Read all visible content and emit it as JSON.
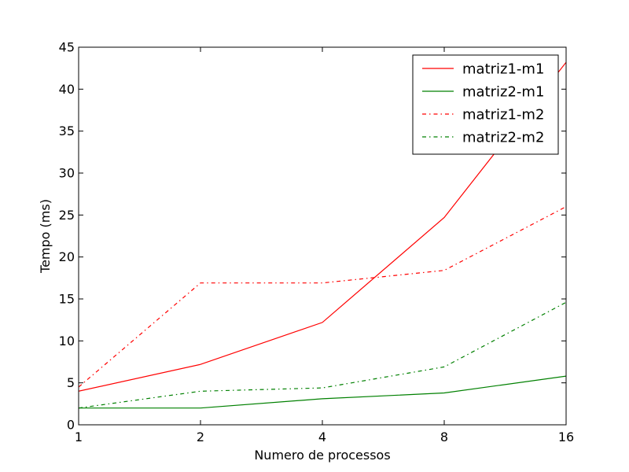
{
  "chart_data": {
    "type": "line",
    "xlabel": "Numero de processos",
    "ylabel": "Tempo (ms)",
    "x": [
      1,
      2,
      4,
      8,
      16
    ],
    "x_ticks": [
      "1",
      "2",
      "4",
      "8",
      "16"
    ],
    "x_scale": "log2",
    "ylim": [
      0,
      45
    ],
    "y_ticks": [
      "0",
      "5",
      "10",
      "15",
      "20",
      "25",
      "30",
      "35",
      "40",
      "45"
    ],
    "grid": false,
    "legend_position": "top-right",
    "series": [
      {
        "name": "matriz1-m1",
        "color": "#ff0000",
        "style": "solid",
        "values": [
          4.0,
          7.2,
          12.2,
          24.7,
          43.2
        ]
      },
      {
        "name": "matriz2-m1",
        "color": "#008000",
        "style": "solid",
        "values": [
          2.0,
          2.0,
          3.1,
          3.8,
          5.8
        ]
      },
      {
        "name": "matriz1-m2",
        "color": "#ff0000",
        "style": "dashdot",
        "values": [
          4.5,
          16.9,
          16.9,
          18.4,
          26.0
        ]
      },
      {
        "name": "matriz2-m2",
        "color": "#008000",
        "style": "dashdot",
        "values": [
          2.0,
          4.0,
          4.4,
          6.9,
          14.6
        ]
      }
    ]
  }
}
